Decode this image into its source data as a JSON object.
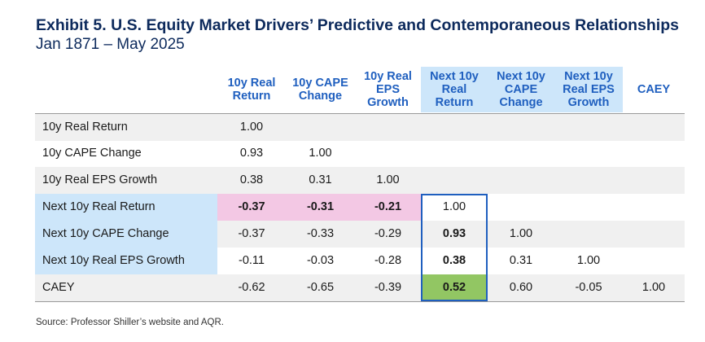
{
  "title": "Exhibit 5. U.S. Equity Market Drivers’ Predictive and Contemporaneous Relationships",
  "subtitle": "Jan 1871 – May 2025",
  "source": "Source: Professor Shiller’s website and AQR.",
  "colors": {
    "header_text": "#1f5fbf",
    "highlight_blue": "#cde6fa",
    "highlight_pink": "#f3c8e4",
    "highlight_green": "#92c663",
    "box_border": "#1f5fbf",
    "row_shade": "#f0f0f0"
  },
  "chart_data": {
    "type": "table",
    "columns": [
      "10y Real Return",
      "10y CAPE Change",
      "10y Real EPS Growth",
      "Next 10y Real Return",
      "Next 10y CAPE Change",
      "Next 10y Real EPS Growth",
      "CAEY"
    ],
    "column_labels": [
      "10y Real\nReturn",
      "10y CAPE\nChange",
      "10y Real\nEPS\nGrowth",
      "Next 10y\nReal\nReturn",
      "Next 10y\nCAPE\nChange",
      "Next 10y\nReal EPS\nGrowth",
      "CAEY"
    ],
    "highlighted_columns": [
      "Next 10y Real Return",
      "Next 10y CAPE Change",
      "Next 10y Real EPS Growth"
    ],
    "highlighted_rows": [
      "Next 10y Real Return",
      "Next 10y CAPE Change",
      "Next 10y Real EPS Growth"
    ],
    "rows": [
      {
        "label": "10y Real Return",
        "values": [
          "1.00",
          "",
          "",
          "",
          "",
          "",
          ""
        ]
      },
      {
        "label": "10y CAPE Change",
        "values": [
          "0.93",
          "1.00",
          "",
          "",
          "",
          "",
          ""
        ]
      },
      {
        "label": "10y Real EPS Growth",
        "values": [
          "0.38",
          "0.31",
          "1.00",
          "",
          "",
          "",
          ""
        ]
      },
      {
        "label": "Next 10y Real Return",
        "values": [
          "-0.37",
          "-0.31",
          "-0.21",
          "1.00",
          "",
          "",
          ""
        ]
      },
      {
        "label": "Next 10y CAPE Change",
        "values": [
          "-0.37",
          "-0.33",
          "-0.29",
          "0.93",
          "1.00",
          "",
          ""
        ]
      },
      {
        "label": "Next 10y Real EPS Growth",
        "values": [
          "-0.11",
          "-0.03",
          "-0.28",
          "0.38",
          "0.31",
          "1.00",
          ""
        ]
      },
      {
        "label": "CAEY",
        "values": [
          "-0.62",
          "-0.65",
          "-0.39",
          "0.52",
          "0.60",
          "-0.05",
          "1.00"
        ]
      }
    ],
    "emphasized_cells": [
      {
        "row": 3,
        "col": 0,
        "style": "bold-pink"
      },
      {
        "row": 3,
        "col": 1,
        "style": "bold-pink"
      },
      {
        "row": 3,
        "col": 2,
        "style": "bold-pink"
      },
      {
        "row": 4,
        "col": 3,
        "style": "bold"
      },
      {
        "row": 5,
        "col": 3,
        "style": "bold"
      },
      {
        "row": 6,
        "col": 3,
        "style": "bold-green"
      }
    ],
    "boxed_region": {
      "rows": [
        3,
        6
      ],
      "cols": [
        3,
        3
      ]
    }
  }
}
